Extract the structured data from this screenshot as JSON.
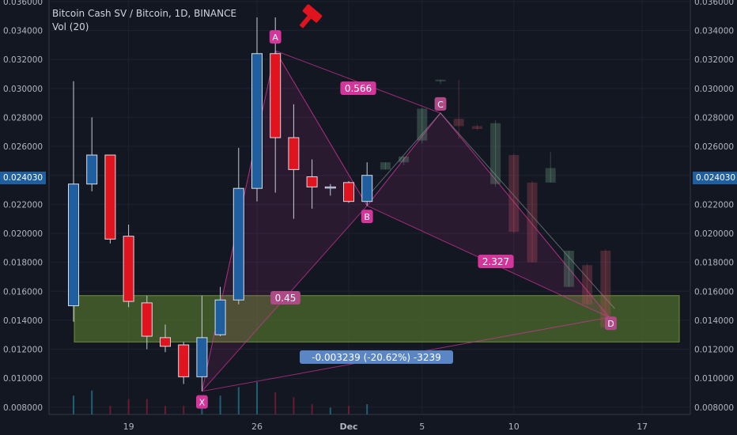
{
  "header": {
    "title": "Bitcoin Cash SV / Bitcoin, 1D, BINANCE",
    "volume_label": "Vol (20)"
  },
  "current_price": "0.024030",
  "colors": {
    "background": "#131722",
    "up": "#1f5fa0",
    "down": "#e0141e",
    "pattern": "#d4359a",
    "zone": "#4e6b2c",
    "measure_badge": "#5a86c6"
  },
  "chart_data": {
    "type": "candlestick",
    "symbol": "Bitcoin Cash SV / Bitcoin",
    "interval": "1D",
    "exchange": "BINANCE",
    "ylim": [
      0.0075,
      0.0361
    ],
    "y_ticks": [
      "0.036000",
      "0.034000",
      "0.032000",
      "0.030000",
      "0.028000",
      "0.026000",
      "0.024000",
      "0.022000",
      "0.020000",
      "0.018000",
      "0.016000",
      "0.014000",
      "0.012000",
      "0.010000",
      "0.008000"
    ],
    "x_ticks": [
      "19",
      "26",
      "Dec",
      "5",
      "10",
      "17"
    ],
    "candles": [
      {
        "o": 0.015,
        "h": 0.0305,
        "l": 0.0139,
        "c": 0.0234
      },
      {
        "o": 0.0234,
        "h": 0.028,
        "l": 0.0229,
        "c": 0.0254
      },
      {
        "o": 0.0254,
        "h": 0.0254,
        "l": 0.0193,
        "c": 0.0196
      },
      {
        "o": 0.0198,
        "h": 0.0206,
        "l": 0.0149,
        "c": 0.0153
      },
      {
        "o": 0.0152,
        "h": 0.0157,
        "l": 0.012,
        "c": 0.0129
      },
      {
        "o": 0.0128,
        "h": 0.0137,
        "l": 0.0118,
        "c": 0.0122
      },
      {
        "o": 0.0123,
        "h": 0.0125,
        "l": 0.0096,
        "c": 0.0101
      },
      {
        "o": 0.0101,
        "h": 0.0157,
        "l": 0.0091,
        "c": 0.0128
      },
      {
        "o": 0.013,
        "h": 0.0163,
        "l": 0.0129,
        "c": 0.0154
      },
      {
        "o": 0.0154,
        "h": 0.0259,
        "l": 0.0151,
        "c": 0.0231
      },
      {
        "o": 0.0231,
        "h": 0.0349,
        "l": 0.0222,
        "c": 0.0324
      },
      {
        "o": 0.0324,
        "h": 0.0349,
        "l": 0.0228,
        "c": 0.0266
      },
      {
        "o": 0.0266,
        "h": 0.0289,
        "l": 0.021,
        "c": 0.0244
      },
      {
        "o": 0.0239,
        "h": 0.0251,
        "l": 0.0217,
        "c": 0.0232
      },
      {
        "o": 0.0232,
        "h": 0.0234,
        "l": 0.0226,
        "c": 0.0232
      },
      {
        "o": 0.0235,
        "h": 0.0236,
        "l": 0.0221,
        "c": 0.0222
      },
      {
        "o": 0.0222,
        "h": 0.0249,
        "l": 0.0219,
        "c": 0.024
      }
    ],
    "projected_candles": [
      {
        "o": 0.0244,
        "h": 0.0249,
        "l": 0.0244,
        "c": 0.0249
      },
      {
        "o": 0.0249,
        "h": 0.0253,
        "l": 0.0247,
        "c": 0.0253
      },
      {
        "o": 0.0264,
        "h": 0.0287,
        "l": 0.0262,
        "c": 0.0286
      },
      {
        "o": 0.0305,
        "h": 0.0306,
        "l": 0.0303,
        "c": 0.0306
      },
      {
        "o": 0.0279,
        "h": 0.0306,
        "l": 0.0265,
        "c": 0.0274
      },
      {
        "o": 0.0274,
        "h": 0.0275,
        "l": 0.0271,
        "c": 0.0272
      },
      {
        "o": 0.0234,
        "h": 0.0278,
        "l": 0.0232,
        "c": 0.0276
      },
      {
        "o": 0.0254,
        "h": 0.0255,
        "l": 0.02,
        "c": 0.0201
      },
      {
        "o": 0.0235,
        "h": 0.0236,
        "l": 0.018,
        "c": 0.018
      },
      {
        "o": 0.0235,
        "h": 0.0256,
        "l": 0.0235,
        "c": 0.0245
      },
      {
        "o": 0.0163,
        "h": 0.0188,
        "l": 0.0163,
        "c": 0.0188
      },
      {
        "o": 0.0178,
        "h": 0.0179,
        "l": 0.0149,
        "c": 0.0151
      },
      {
        "o": 0.0188,
        "h": 0.0189,
        "l": 0.0134,
        "c": 0.0135
      }
    ],
    "volume": [
      0.22,
      0.28,
      0.1,
      0.18,
      0.18,
      0.1,
      0.1,
      0.14,
      0.22,
      0.32,
      0.38,
      0.26,
      0.2,
      0.12,
      0.08,
      0.1,
      0.12
    ],
    "harmonic_pattern": {
      "points": [
        {
          "label": "X",
          "price": 0.0091
        },
        {
          "label": "A",
          "price": 0.0326
        },
        {
          "label": "B",
          "price": 0.0219
        },
        {
          "label": "C",
          "price": 0.0283
        },
        {
          "label": "D",
          "price": 0.0142
        }
      ],
      "ratios": [
        "0.566",
        "0.45",
        "2.327"
      ]
    },
    "zone": {
      "top": 0.0157,
      "bottom": 0.0125
    },
    "measure_label": "-0.003239 (-20.62%) -3239"
  }
}
